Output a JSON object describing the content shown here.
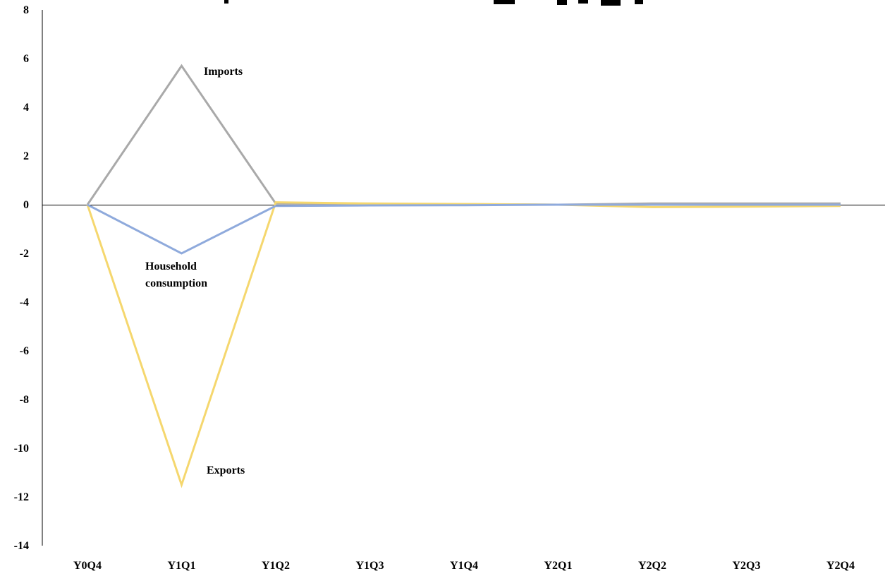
{
  "chart_data": {
    "type": "line",
    "title": "",
    "xlabel": "",
    "ylabel": "",
    "categories": [
      "Y0Q4",
      "Y1Q1",
      "Y1Q2",
      "Y1Q3",
      "Y1Q4",
      "Y2Q1",
      "Y2Q2",
      "Y2Q3",
      "Y2Q4"
    ],
    "ylim": [
      -14,
      8
    ],
    "yticks": [
      8,
      6,
      4,
      2,
      0,
      -2,
      -4,
      -6,
      -8,
      -10,
      -12,
      -14
    ],
    "grid": false,
    "legend": "none",
    "series": [
      {
        "name": "Imports",
        "color": "#a9a9a9",
        "values": [
          0,
          5.7,
          0.05,
          0.03,
          0.02,
          0.0,
          0.05,
          0.05,
          0.05
        ]
      },
      {
        "name": "Exports",
        "color": "#f5d76e",
        "values": [
          0,
          -11.5,
          0.1,
          0.05,
          0.03,
          0.0,
          -0.1,
          -0.08,
          -0.05
        ]
      },
      {
        "name": "Household consumption",
        "color": "#8faadc",
        "values": [
          0,
          -2.0,
          -0.05,
          -0.03,
          -0.02,
          0.0,
          0.0,
          0.0,
          0.0
        ]
      }
    ],
    "annotations": [
      {
        "text": "Imports",
        "series": "Imports"
      },
      {
        "text": "Household consumption",
        "lines": [
          "Household",
          "consumption"
        ],
        "series": "Household consumption"
      },
      {
        "text": "Exports",
        "series": "Exports"
      }
    ]
  }
}
